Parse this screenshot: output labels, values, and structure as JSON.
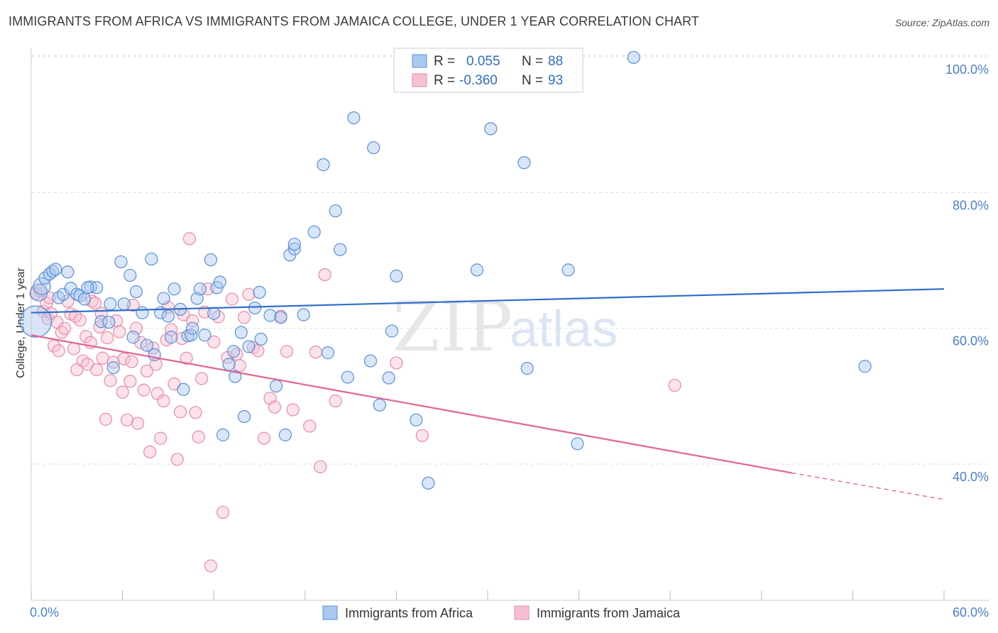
{
  "title": "IMMIGRANTS FROM AFRICA VS IMMIGRANTS FROM JAMAICA COLLEGE, UNDER 1 YEAR CORRELATION CHART",
  "source": "Source: ZipAtlas.com",
  "watermark": {
    "zip": "ZIP",
    "atlas": "atlas"
  },
  "colors": {
    "africa_fill": "#a9c8ef",
    "africa_stroke": "#5b8fd6",
    "africa_line": "#2e6fca",
    "jamaica_fill": "#f6c0d0",
    "jamaica_stroke": "#e88aa8",
    "jamaica_line": "#e06592",
    "axis_text": "#4a7fd0",
    "grid": "#dddddd"
  },
  "legend": {
    "rows": [
      {
        "r_label": "R =",
        "r_value": "0.055",
        "n_label": "N =",
        "n_value": "88"
      },
      {
        "r_label": "R =",
        "r_value": "-0.360",
        "n_label": "N =",
        "n_value": "93"
      }
    ]
  },
  "bottom_legend": {
    "africa": "Immigrants from Africa",
    "jamaica": "Immigrants from Jamaica"
  },
  "chart_data": {
    "type": "scatter",
    "xlabel": "",
    "ylabel": "College, Under 1 year",
    "xlim": [
      0,
      60
    ],
    "ylim": [
      20,
      102
    ],
    "x_tick_labels": {
      "left": "0.0%",
      "right": "60.0%"
    },
    "y_ticks": [
      {
        "value": 100,
        "label": "100.0%"
      },
      {
        "value": 80,
        "label": "80.0%"
      },
      {
        "value": 60,
        "label": "60.0%"
      },
      {
        "value": 40,
        "label": "40.0%"
      }
    ],
    "series": [
      {
        "name": "Immigrants from Africa",
        "r": 0.055,
        "n": 88,
        "trend": {
          "x0": 0,
          "y0": 62.3,
          "x1": 60,
          "y1": 65.8
        },
        "points": [
          [
            0.3,
            61.0
          ],
          [
            0.5,
            65.3
          ],
          [
            0.7,
            66.2
          ],
          [
            0.9,
            67.4
          ],
          [
            1.2,
            68.0
          ],
          [
            1.4,
            68.4
          ],
          [
            1.6,
            68.7
          ],
          [
            1.8,
            64.5
          ],
          [
            2.1,
            65.0
          ],
          [
            2.4,
            68.3
          ],
          [
            2.6,
            65.9
          ],
          [
            3.0,
            65.0
          ],
          [
            3.2,
            64.8
          ],
          [
            3.5,
            64.3
          ],
          [
            3.9,
            66.1
          ],
          [
            4.3,
            66.0
          ],
          [
            4.6,
            61.0
          ],
          [
            5.1,
            60.9
          ],
          [
            5.2,
            63.6
          ],
          [
            5.4,
            54.2
          ],
          [
            5.9,
            69.8
          ],
          [
            6.1,
            63.6
          ],
          [
            6.5,
            67.8
          ],
          [
            6.9,
            65.4
          ],
          [
            7.3,
            62.3
          ],
          [
            7.6,
            57.5
          ],
          [
            7.9,
            70.2
          ],
          [
            8.1,
            56.1
          ],
          [
            8.5,
            62.3
          ],
          [
            8.7,
            64.4
          ],
          [
            9.0,
            61.8
          ],
          [
            9.2,
            58.7
          ],
          [
            9.4,
            65.8
          ],
          [
            9.8,
            62.8
          ],
          [
            10.0,
            51.0
          ],
          [
            10.3,
            58.9
          ],
          [
            10.5,
            59.0
          ],
          [
            10.6,
            60.0
          ],
          [
            10.9,
            64.4
          ],
          [
            11.1,
            65.8
          ],
          [
            11.4,
            59.0
          ],
          [
            11.8,
            70.1
          ],
          [
            12.0,
            62.2
          ],
          [
            12.2,
            66.0
          ],
          [
            12.4,
            66.8
          ],
          [
            12.6,
            44.3
          ],
          [
            13.0,
            54.7
          ],
          [
            13.3,
            56.6
          ],
          [
            13.4,
            52.9
          ],
          [
            13.8,
            59.4
          ],
          [
            14.0,
            47.0
          ],
          [
            14.3,
            57.3
          ],
          [
            14.7,
            63.0
          ],
          [
            15.0,
            65.3
          ],
          [
            15.1,
            58.4
          ],
          [
            15.7,
            61.9
          ],
          [
            16.1,
            51.5
          ],
          [
            16.4,
            61.6
          ],
          [
            16.7,
            44.3
          ],
          [
            17.0,
            70.8
          ],
          [
            17.3,
            71.7
          ],
          [
            17.3,
            72.4
          ],
          [
            17.9,
            62.0
          ],
          [
            18.6,
            74.2
          ],
          [
            19.2,
            84.1
          ],
          [
            19.5,
            56.4
          ],
          [
            20.0,
            77.3
          ],
          [
            20.3,
            71.6
          ],
          [
            20.8,
            52.8
          ],
          [
            21.2,
            91.0
          ],
          [
            22.3,
            55.2
          ],
          [
            22.5,
            86.6
          ],
          [
            22.9,
            48.7
          ],
          [
            23.5,
            52.7
          ],
          [
            23.7,
            59.6
          ],
          [
            24.0,
            67.7
          ],
          [
            25.3,
            46.5
          ],
          [
            26.1,
            37.2
          ],
          [
            29.3,
            68.6
          ],
          [
            30.2,
            89.4
          ],
          [
            32.4,
            84.4
          ],
          [
            32.6,
            54.1
          ],
          [
            35.3,
            68.6
          ],
          [
            35.9,
            43.0
          ],
          [
            39.6,
            99.9
          ],
          [
            54.8,
            54.4
          ],
          [
            3.7,
            66.0
          ],
          [
            6.7,
            58.7
          ]
        ]
      },
      {
        "name": "Immigrants from Jamaica",
        "r": -0.36,
        "n": 93,
        "trend": {
          "x0": 0,
          "y0": 59.0,
          "x1": 50.0,
          "y1": 38.7
        },
        "trend_dashed": {
          "x0": 50.0,
          "y0": 38.7,
          "x1": 60,
          "y1": 34.8
        },
        "points": [
          [
            0.3,
            65.1
          ],
          [
            0.6,
            65.5
          ],
          [
            0.8,
            62.5
          ],
          [
            1.0,
            63.7
          ],
          [
            1.1,
            61.4
          ],
          [
            1.3,
            62.2
          ],
          [
            1.5,
            57.4
          ],
          [
            1.7,
            60.9
          ],
          [
            1.8,
            56.7
          ],
          [
            2.0,
            59.4
          ],
          [
            2.2,
            60.0
          ],
          [
            2.4,
            64.0
          ],
          [
            2.6,
            62.1
          ],
          [
            2.8,
            57.0
          ],
          [
            3.0,
            53.9
          ],
          [
            3.2,
            61.2
          ],
          [
            3.4,
            55.2
          ],
          [
            3.6,
            58.8
          ],
          [
            3.7,
            54.7
          ],
          [
            3.9,
            57.9
          ],
          [
            4.0,
            64.0
          ],
          [
            4.2,
            63.7
          ],
          [
            4.3,
            53.9
          ],
          [
            4.5,
            60.2
          ],
          [
            4.7,
            55.6
          ],
          [
            4.9,
            46.6
          ],
          [
            5.0,
            58.6
          ],
          [
            5.2,
            52.3
          ],
          [
            5.4,
            55.0
          ],
          [
            5.6,
            61.1
          ],
          [
            5.8,
            59.5
          ],
          [
            6.0,
            50.6
          ],
          [
            6.1,
            55.5
          ],
          [
            6.3,
            46.5
          ],
          [
            6.5,
            52.2
          ],
          [
            6.7,
            63.4
          ],
          [
            6.9,
            60.0
          ],
          [
            7.0,
            46.0
          ],
          [
            7.2,
            57.9
          ],
          [
            7.4,
            50.9
          ],
          [
            7.6,
            53.7
          ],
          [
            7.8,
            41.8
          ],
          [
            8.0,
            57.1
          ],
          [
            8.2,
            54.7
          ],
          [
            8.3,
            50.4
          ],
          [
            8.5,
            43.8
          ],
          [
            8.7,
            49.3
          ],
          [
            8.9,
            58.3
          ],
          [
            9.0,
            63.1
          ],
          [
            9.2,
            59.8
          ],
          [
            9.4,
            51.8
          ],
          [
            9.6,
            40.7
          ],
          [
            9.8,
            47.7
          ],
          [
            10.0,
            62.0
          ],
          [
            10.2,
            55.6
          ],
          [
            10.4,
            73.2
          ],
          [
            10.6,
            61.1
          ],
          [
            10.8,
            47.6
          ],
          [
            11.0,
            44.0
          ],
          [
            11.2,
            52.6
          ],
          [
            11.4,
            62.4
          ],
          [
            11.6,
            65.8
          ],
          [
            11.8,
            25.0
          ],
          [
            12.0,
            58.0
          ],
          [
            12.3,
            61.7
          ],
          [
            12.6,
            32.9
          ],
          [
            12.9,
            55.7
          ],
          [
            13.2,
            64.3
          ],
          [
            13.5,
            56.2
          ],
          [
            13.7,
            54.5
          ],
          [
            14.0,
            61.6
          ],
          [
            14.3,
            65.0
          ],
          [
            14.6,
            57.2
          ],
          [
            14.9,
            56.7
          ],
          [
            15.3,
            43.8
          ],
          [
            15.7,
            49.7
          ],
          [
            16.0,
            48.4
          ],
          [
            16.4,
            61.8
          ],
          [
            16.8,
            56.6
          ],
          [
            17.2,
            48.0
          ],
          [
            18.3,
            45.6
          ],
          [
            18.7,
            56.5
          ],
          [
            19.0,
            39.6
          ],
          [
            19.3,
            67.9
          ],
          [
            20.0,
            49.3
          ],
          [
            24.0,
            54.9
          ],
          [
            25.7,
            44.2
          ],
          [
            42.3,
            51.6
          ],
          [
            1.2,
            64.5
          ],
          [
            2.9,
            61.8
          ],
          [
            4.6,
            62.2
          ],
          [
            6.6,
            55.1
          ],
          [
            9.9,
            58.5
          ]
        ]
      }
    ]
  }
}
